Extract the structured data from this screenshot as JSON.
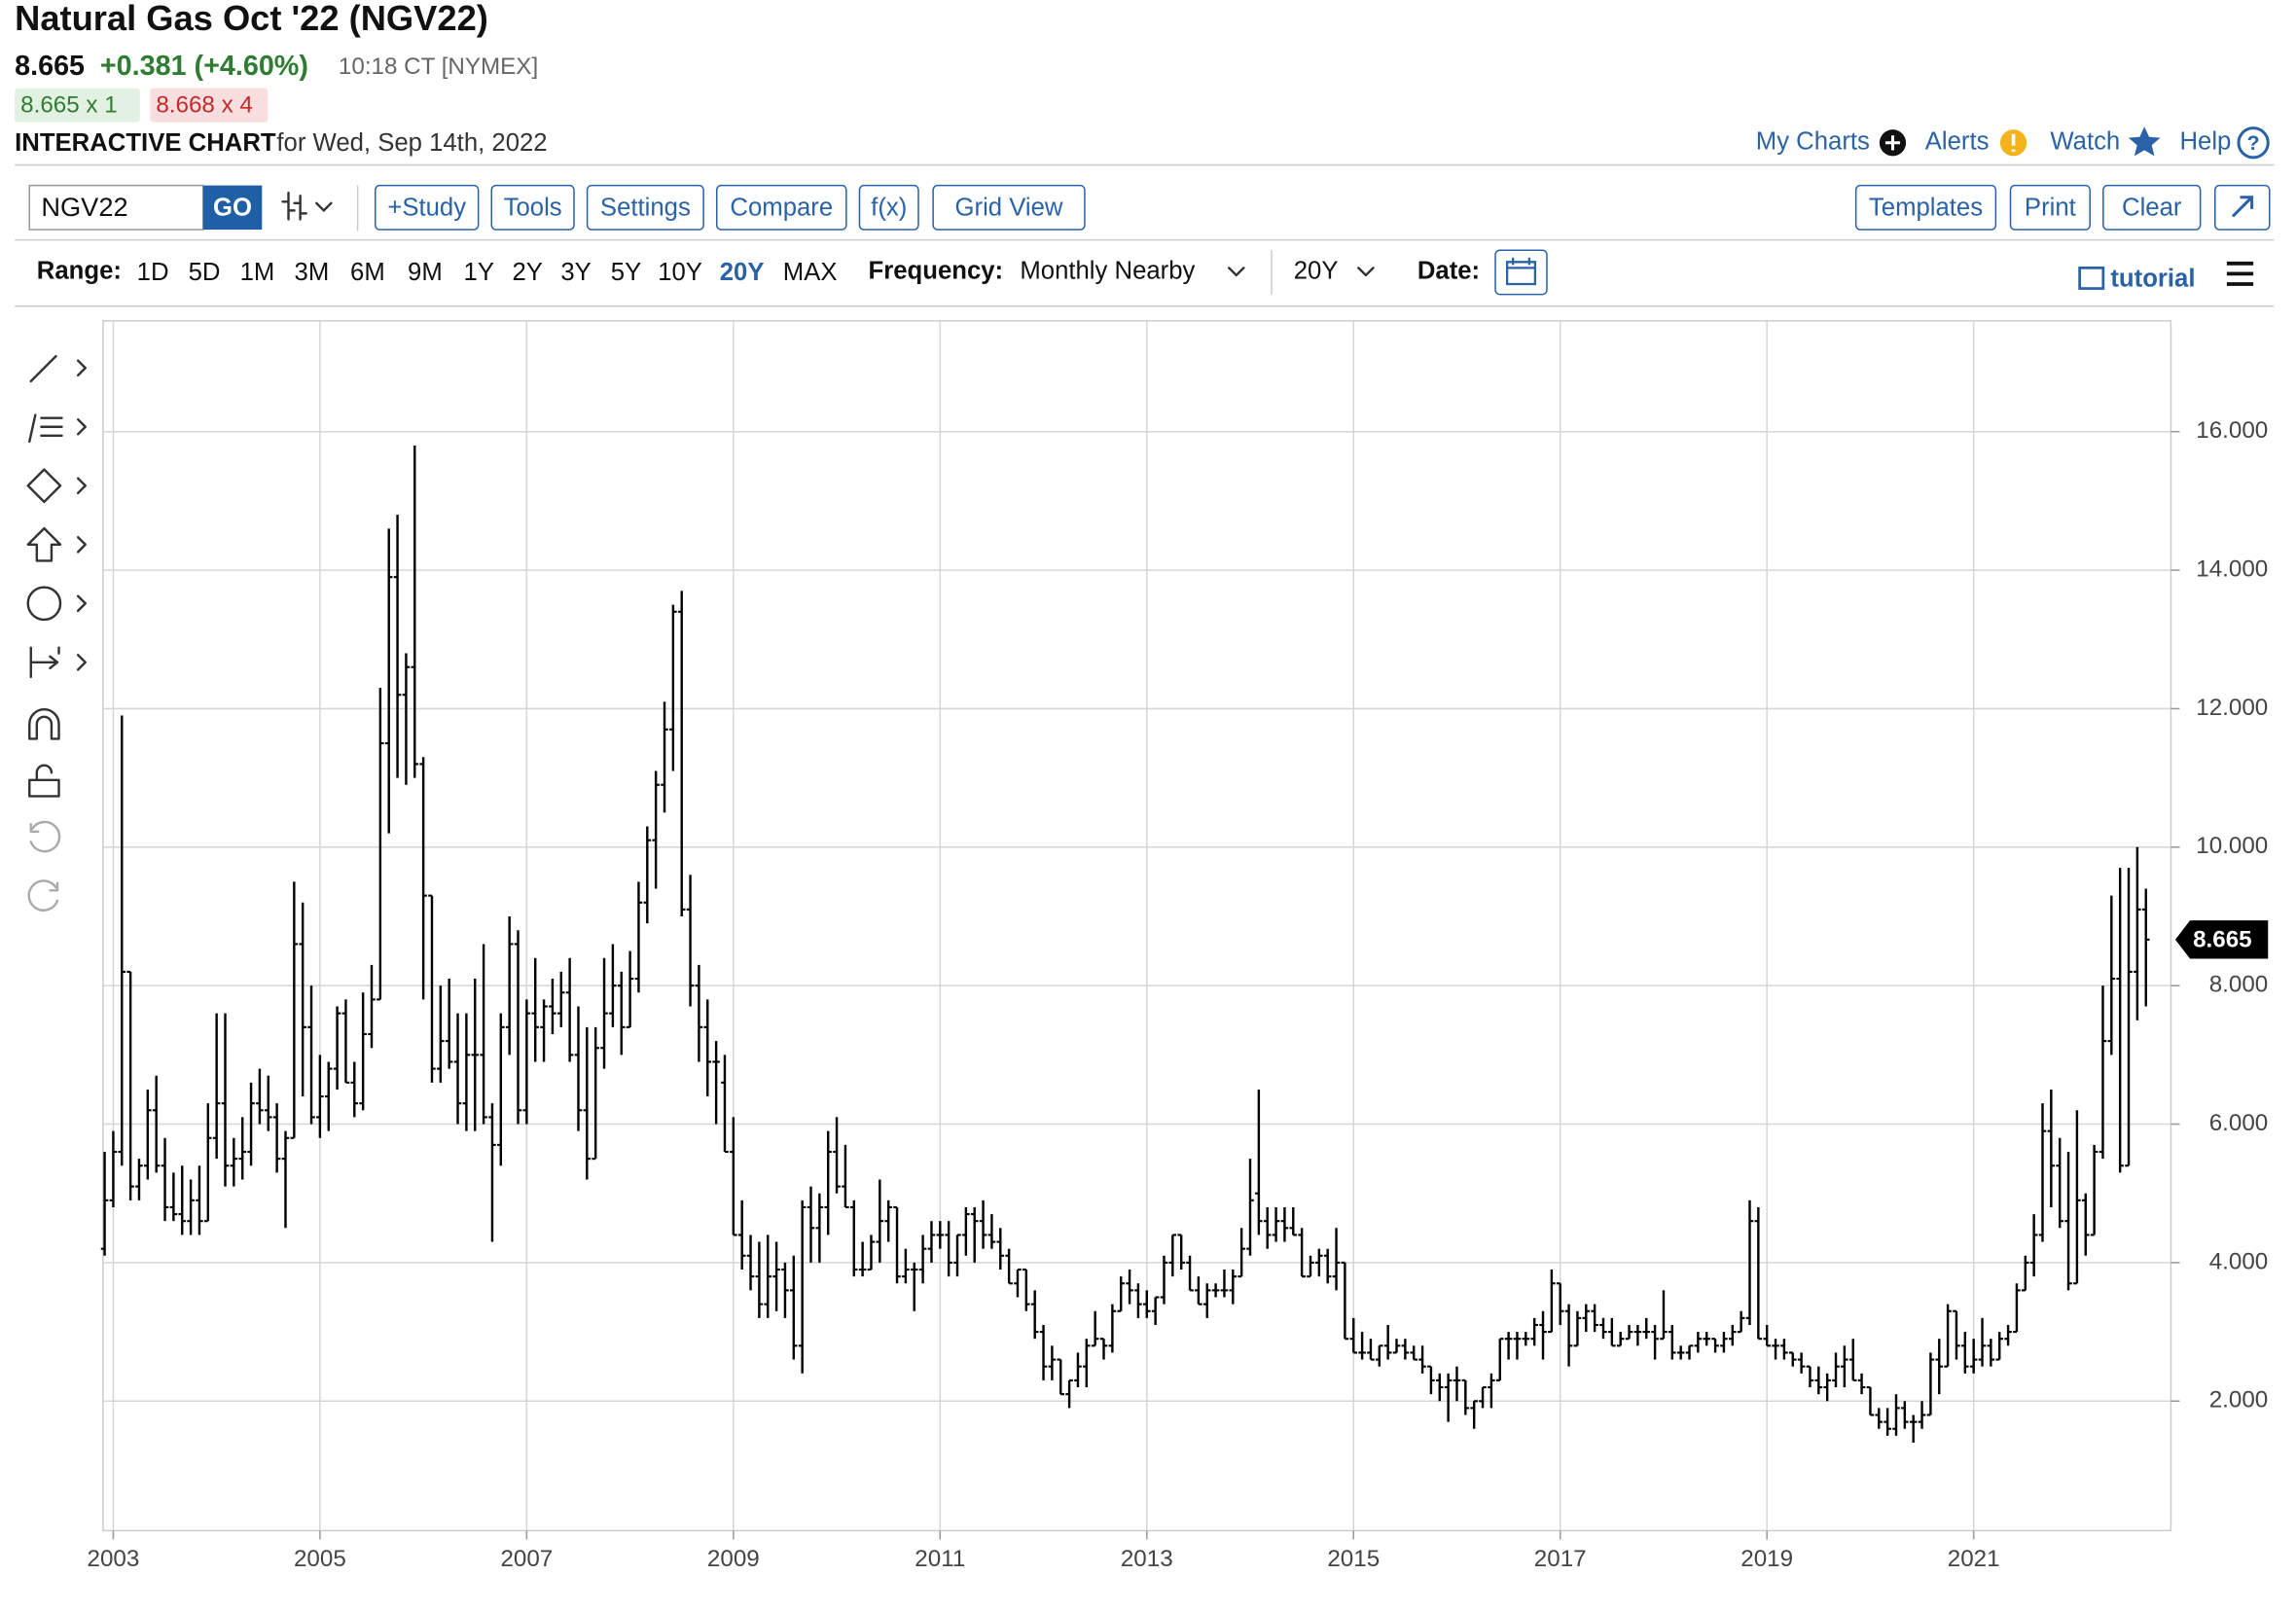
{
  "header": {
    "title": "Natural Gas Oct '22 (NGV22)",
    "last": "8.665",
    "change": "+0.381 (+4.60%)",
    "time": "10:18 CT [NYMEX]",
    "bid": "8.665 x 1",
    "ask": "8.668 x 4",
    "chart_label": "INTERACTIVE CHART",
    "date_text": "for Wed, Sep 14th, 2022"
  },
  "top_links": [
    "My Charts",
    "Alerts",
    "Watch",
    "Help"
  ],
  "toolbar": {
    "symbol": "NGV22",
    "go": "GO",
    "buttons": [
      "+Study",
      "Tools",
      "Settings",
      "Compare",
      "f(x)",
      "Grid View"
    ],
    "right_buttons": [
      "Templates",
      "Print",
      "Clear"
    ]
  },
  "range_bar": {
    "label": "Range:",
    "ranges": [
      "1D",
      "5D",
      "1M",
      "3M",
      "6M",
      "9M",
      "1Y",
      "2Y",
      "3Y",
      "5Y",
      "10Y",
      "20Y",
      "MAX"
    ],
    "active": "20Y",
    "frequency_label": "Frequency:",
    "frequency": "Monthly Nearby",
    "period": "20Y",
    "date_label": "Date:",
    "tutorial": "tutorial"
  },
  "chart_data": {
    "type": "ohlc",
    "color": "#000000",
    "grid": true,
    "categories": [
      null,
      "2003",
      null,
      null,
      null,
      null,
      null,
      null,
      null,
      null,
      null,
      null,
      null,
      null,
      null,
      null,
      null,
      null,
      null,
      null,
      null,
      null,
      null,
      null,
      null,
      "2005",
      null,
      null,
      null,
      null,
      null,
      null,
      null,
      null,
      null,
      null,
      null,
      null,
      null,
      null,
      null,
      null,
      null,
      null,
      null,
      null,
      null,
      null,
      null,
      "2007",
      null,
      null,
      null,
      null,
      null,
      null,
      null,
      null,
      null,
      null,
      null,
      null,
      null,
      null,
      null,
      null,
      null,
      null,
      null,
      null,
      null,
      null,
      null,
      "2009",
      null,
      null,
      null,
      null,
      null,
      null,
      null,
      null,
      null,
      null,
      null,
      null,
      null,
      null,
      null,
      null,
      null,
      null,
      null,
      null,
      null,
      null,
      null,
      "2011",
      null,
      null,
      null,
      null,
      null,
      null,
      null,
      null,
      null,
      null,
      null,
      null,
      null,
      null,
      null,
      null,
      null,
      null,
      null,
      null,
      null,
      null,
      null,
      "2013",
      null,
      null,
      null,
      null,
      null,
      null,
      null,
      null,
      null,
      null,
      null,
      null,
      null,
      null,
      null,
      null,
      null,
      null,
      null,
      null,
      null,
      null,
      null,
      "2015",
      null,
      null,
      null,
      null,
      null,
      null,
      null,
      null,
      null,
      null,
      null,
      null,
      null,
      null,
      null,
      null,
      null,
      null,
      null,
      null,
      null,
      null,
      null,
      "2017",
      null,
      null,
      null,
      null,
      null,
      null,
      null,
      null,
      null,
      null,
      null,
      null,
      null,
      null,
      null,
      null,
      null,
      null,
      null,
      null,
      null,
      null,
      null,
      "2019",
      null,
      null,
      null,
      null,
      null,
      null,
      null,
      null,
      null,
      null,
      null,
      null,
      null,
      null,
      null,
      null,
      null,
      null,
      null,
      null,
      null,
      null,
      null,
      "2021",
      null,
      null,
      null,
      null,
      null,
      null,
      null,
      null,
      null,
      null,
      null,
      null,
      null,
      null,
      null,
      null,
      null,
      null,
      null,
      null
    ],
    "open": [
      4.2,
      4.9,
      5.6,
      8.2,
      5.1,
      5.4,
      6.2,
      5.4,
      4.8,
      4.7,
      4.6,
      4.9,
      4.6,
      5.8,
      6.3,
      5.4,
      5.5,
      5.6,
      6.3,
      6.2,
      6.1,
      5.5,
      5.8,
      8.6,
      7.4,
      6.1,
      6.4,
      6.8,
      7.6,
      6.6,
      6.3,
      7.3,
      7.8,
      11.5,
      13.9,
      12.2,
      12.6,
      11.2,
      9.3,
      6.8,
      7.2,
      6.9,
      6.3,
      7.0,
      7.0,
      6.1,
      5.7,
      7.4,
      8.6,
      6.2,
      7.6,
      7.4,
      7.7,
      7.6,
      7.9,
      7.0,
      6.2,
      5.5,
      7.1,
      7.6,
      8.0,
      7.4,
      8.1,
      9.2,
      10.1,
      10.9,
      11.7,
      13.4,
      9.1,
      8.0,
      7.4,
      6.9,
      6.6,
      5.6,
      4.4,
      4.1,
      3.8,
      3.4,
      3.8,
      3.9,
      3.6,
      2.8,
      4.8,
      4.5,
      4.8,
      5.6,
      5.1,
      4.8,
      3.9,
      3.9,
      4.3,
      4.6,
      4.8,
      3.8,
      3.9,
      3.9,
      4.2,
      4.4,
      4.4,
      4.0,
      4.4,
      4.7,
      4.6,
      4.4,
      4.3,
      4.1,
      3.7,
      3.9,
      3.4,
      3.0,
      2.5,
      2.6,
      2.1,
      2.3,
      2.5,
      2.8,
      2.9,
      2.8,
      3.3,
      3.7,
      3.6,
      3.4,
      3.3,
      3.5,
      4.0,
      4.4,
      4.0,
      3.6,
      3.4,
      3.6,
      3.6,
      3.6,
      3.8,
      4.2,
      5.0,
      4.6,
      4.4,
      4.6,
      4.5,
      4.4,
      3.8,
      4.0,
      4.1,
      3.8,
      4.0,
      2.9,
      2.7,
      2.7,
      2.6,
      2.8,
      2.7,
      2.8,
      2.7,
      2.6,
      2.5,
      2.3,
      2.2,
      2.3,
      2.3,
      1.9,
      2.0,
      2.2,
      2.3,
      2.9,
      2.9,
      2.9,
      2.9,
      3.1,
      3.0,
      3.7,
      3.3,
      2.8,
      3.2,
      3.3,
      3.1,
      3.0,
      2.8,
      2.9,
      3.0,
      3.0,
      3.0,
      2.9,
      3.0,
      2.7,
      2.7,
      2.8,
      2.9,
      2.9,
      2.8,
      2.9,
      3.0,
      3.2,
      4.6,
      2.9,
      2.8,
      2.8,
      2.7,
      2.6,
      2.5,
      2.3,
      2.2,
      2.3,
      2.5,
      2.6,
      2.3,
      2.2,
      1.8,
      1.7,
      1.6,
      1.9,
      1.7,
      1.7,
      1.8,
      2.6,
      2.5,
      3.3,
      2.8,
      2.5,
      2.6,
      2.8,
      2.6,
      2.9,
      3.0,
      3.6,
      4.0,
      4.4,
      5.9,
      5.4,
      4.6,
      3.7,
      4.9,
      4.4,
      5.6,
      7.2,
      8.1,
      5.4,
      8.2,
      9.1
    ],
    "high": [
      5.6,
      5.9,
      11.9,
      8.2,
      5.5,
      6.5,
      6.7,
      5.8,
      5.3,
      5.4,
      5.2,
      5.4,
      6.3,
      7.6,
      7.6,
      5.8,
      6.1,
      6.6,
      6.8,
      6.7,
      6.3,
      5.9,
      9.5,
      9.2,
      8.0,
      7.0,
      6.9,
      7.7,
      7.8,
      6.9,
      7.9,
      8.3,
      12.3,
      14.6,
      14.8,
      12.8,
      15.8,
      11.3,
      9.3,
      8.0,
      8.1,
      7.6,
      7.6,
      8.1,
      8.6,
      6.3,
      7.6,
      9.0,
      8.8,
      7.8,
      8.4,
      7.8,
      8.1,
      8.2,
      8.4,
      7.7,
      7.4,
      7.4,
      8.4,
      8.6,
      8.2,
      8.5,
      9.5,
      10.3,
      11.1,
      12.1,
      13.5,
      13.7,
      9.6,
      8.3,
      7.8,
      7.2,
      7.0,
      6.1,
      4.9,
      4.4,
      4.3,
      4.4,
      4.3,
      4.0,
      4.1,
      4.9,
      5.1,
      5.0,
      5.9,
      6.1,
      5.7,
      4.9,
      4.3,
      4.4,
      5.2,
      4.9,
      4.8,
      4.2,
      4.0,
      4.4,
      4.6,
      4.6,
      4.6,
      4.4,
      4.8,
      4.8,
      4.9,
      4.7,
      4.5,
      4.2,
      3.9,
      3.9,
      3.6,
      3.1,
      2.8,
      2.6,
      2.3,
      2.7,
      2.9,
      3.3,
      2.9,
      3.4,
      3.8,
      3.9,
      3.7,
      3.6,
      3.5,
      4.1,
      4.4,
      4.4,
      4.1,
      3.8,
      3.7,
      3.7,
      3.9,
      3.9,
      4.5,
      5.5,
      6.5,
      4.8,
      4.8,
      4.8,
      4.8,
      4.5,
      4.1,
      4.2,
      4.2,
      4.5,
      4.0,
      3.2,
      3.0,
      2.9,
      2.8,
      3.1,
      2.9,
      2.9,
      2.8,
      2.8,
      2.5,
      2.4,
      2.4,
      2.5,
      2.3,
      2.0,
      2.2,
      2.4,
      2.9,
      3.0,
      3.0,
      3.0,
      3.2,
      3.3,
      3.9,
      3.7,
      3.4,
      3.3,
      3.4,
      3.4,
      3.2,
      3.2,
      3.0,
      3.1,
      3.1,
      3.2,
      3.1,
      3.6,
      3.1,
      2.8,
      2.8,
      3.0,
      3.0,
      2.9,
      3.0,
      3.1,
      3.3,
      4.9,
      4.8,
      3.1,
      2.9,
      2.9,
      2.7,
      2.7,
      2.5,
      2.5,
      2.4,
      2.7,
      2.8,
      2.9,
      2.4,
      2.2,
      1.9,
      1.9,
      2.1,
      2.0,
      1.8,
      2.0,
      2.7,
      2.9,
      3.4,
      3.3,
      3.0,
      2.9,
      3.2,
      2.9,
      3.0,
      3.1,
      3.7,
      4.1,
      4.7,
      6.3,
      6.5,
      5.8,
      5.6,
      6.2,
      5.0,
      5.7,
      8.0,
      9.3,
      9.7,
      9.7,
      10.0,
      9.4
    ],
    "low": [
      4.1,
      4.8,
      5.4,
      4.9,
      4.9,
      5.2,
      5.3,
      4.6,
      4.6,
      4.4,
      4.4,
      4.4,
      4.6,
      5.5,
      5.1,
      5.1,
      5.2,
      5.4,
      6.0,
      5.9,
      5.3,
      4.5,
      5.8,
      6.4,
      6.0,
      5.8,
      5.9,
      6.5,
      6.6,
      6.1,
      6.2,
      7.1,
      7.8,
      10.2,
      11.0,
      10.9,
      11.0,
      7.8,
      6.6,
      6.6,
      6.8,
      6.0,
      5.9,
      5.9,
      6.0,
      4.3,
      5.4,
      7.0,
      6.0,
      6.0,
      6.9,
      6.9,
      7.3,
      7.4,
      6.9,
      5.9,
      5.2,
      5.5,
      6.8,
      7.4,
      7.0,
      7.4,
      7.9,
      8.9,
      9.4,
      10.5,
      11.1,
      9.0,
      7.7,
      6.9,
      6.4,
      6.0,
      5.6,
      4.4,
      3.9,
      3.6,
      3.2,
      3.2,
      3.3,
      3.2,
      2.6,
      2.4,
      4.0,
      4.0,
      4.4,
      5.0,
      4.8,
      3.8,
      3.8,
      3.9,
      4.0,
      4.3,
      3.7,
      3.7,
      3.3,
      3.7,
      4.0,
      4.2,
      3.8,
      3.8,
      4.1,
      4.0,
      4.2,
      4.2,
      3.9,
      3.7,
      3.5,
      3.3,
      2.9,
      2.3,
      2.3,
      2.1,
      1.9,
      2.2,
      2.2,
      2.8,
      2.6,
      2.7,
      3.3,
      3.4,
      3.2,
      3.2,
      3.1,
      3.4,
      3.8,
      3.9,
      3.6,
      3.4,
      3.2,
      3.5,
      3.5,
      3.4,
      3.8,
      4.1,
      4.4,
      4.2,
      4.3,
      4.3,
      4.4,
      3.8,
      3.8,
      3.8,
      3.7,
      3.6,
      2.9,
      2.7,
      2.6,
      2.6,
      2.5,
      2.6,
      2.7,
      2.6,
      2.6,
      2.4,
      2.1,
      2.0,
      1.7,
      2.0,
      1.8,
      1.6,
      1.9,
      1.9,
      2.3,
      2.6,
      2.6,
      2.8,
      2.8,
      2.6,
      3.0,
      3.1,
      2.5,
      2.8,
      3.0,
      3.0,
      2.9,
      2.8,
      2.8,
      2.9,
      2.8,
      2.9,
      2.6,
      2.9,
      2.6,
      2.6,
      2.6,
      2.7,
      2.8,
      2.7,
      2.7,
      2.8,
      3.0,
      3.1,
      2.9,
      2.8,
      2.6,
      2.6,
      2.5,
      2.4,
      2.2,
      2.1,
      2.0,
      2.2,
      2.2,
      2.3,
      2.1,
      1.8,
      1.6,
      1.5,
      1.5,
      1.6,
      1.4,
      1.6,
      1.8,
      2.1,
      2.5,
      2.6,
      2.4,
      2.4,
      2.5,
      2.5,
      2.6,
      2.8,
      3.0,
      3.6,
      3.8,
      4.3,
      4.8,
      4.5,
      3.6,
      3.7,
      4.1,
      4.4,
      5.5,
      7.0,
      5.3,
      5.4,
      7.5,
      7.7
    ],
    "close": [
      4.9,
      5.6,
      8.2,
      5.1,
      5.4,
      6.2,
      5.4,
      4.8,
      4.7,
      4.6,
      4.9,
      4.6,
      5.8,
      6.3,
      5.4,
      5.5,
      5.6,
      6.3,
      6.2,
      6.1,
      5.5,
      5.8,
      8.6,
      7.4,
      6.1,
      6.4,
      6.8,
      7.6,
      6.6,
      6.3,
      7.3,
      7.8,
      11.5,
      13.9,
      12.2,
      12.6,
      11.2,
      9.3,
      6.8,
      7.2,
      6.9,
      6.3,
      7.0,
      7.0,
      6.1,
      5.7,
      7.4,
      8.6,
      6.2,
      7.6,
      7.4,
      7.7,
      7.6,
      7.9,
      7.0,
      6.2,
      5.5,
      7.1,
      7.6,
      8.0,
      7.4,
      8.1,
      9.2,
      10.1,
      10.9,
      11.7,
      13.4,
      9.1,
      8.0,
      7.4,
      6.9,
      6.9,
      5.6,
      4.4,
      4.1,
      3.8,
      3.4,
      3.8,
      3.9,
      3.6,
      2.8,
      4.8,
      4.5,
      4.8,
      5.6,
      5.1,
      4.8,
      3.9,
      3.9,
      4.3,
      4.6,
      4.8,
      3.8,
      3.9,
      3.9,
      4.2,
      4.4,
      4.4,
      4.0,
      4.4,
      4.7,
      4.6,
      4.4,
      4.3,
      4.1,
      3.7,
      3.9,
      3.4,
      3.0,
      2.5,
      2.6,
      2.1,
      2.3,
      2.5,
      2.8,
      2.9,
      2.8,
      3.3,
      3.7,
      3.6,
      3.4,
      3.3,
      3.5,
      4.0,
      4.4,
      4.0,
      3.6,
      3.4,
      3.6,
      3.6,
      3.6,
      3.8,
      4.2,
      4.9,
      4.6,
      4.4,
      4.6,
      4.5,
      4.4,
      3.8,
      4.0,
      4.1,
      3.8,
      4.0,
      2.9,
      2.7,
      2.7,
      2.6,
      2.8,
      2.7,
      2.8,
      2.7,
      2.6,
      2.5,
      2.3,
      2.2,
      2.3,
      2.3,
      1.9,
      2.0,
      2.2,
      2.3,
      2.9,
      2.9,
      2.9,
      2.9,
      3.1,
      3.0,
      3.7,
      3.3,
      2.8,
      3.2,
      3.3,
      3.1,
      3.0,
      2.8,
      2.9,
      3.0,
      3.0,
      3.0,
      2.9,
      3.0,
      2.7,
      2.7,
      2.8,
      2.9,
      2.9,
      2.8,
      2.9,
      3.0,
      3.2,
      4.6,
      2.9,
      2.8,
      2.8,
      2.7,
      2.6,
      2.5,
      2.3,
      2.2,
      2.3,
      2.5,
      2.6,
      2.3,
      2.2,
      1.8,
      1.7,
      1.6,
      1.9,
      1.7,
      1.7,
      1.8,
      2.6,
      2.5,
      3.3,
      2.8,
      2.5,
      2.6,
      2.8,
      2.6,
      2.9,
      3.0,
      3.6,
      4.0,
      4.4,
      5.9,
      5.4,
      4.6,
      3.7,
      4.9,
      4.4,
      5.6,
      7.2,
      8.1,
      5.4,
      8.2,
      9.1,
      8.665
    ],
    "ylim": [
      0.13,
      17.6
    ],
    "yticks": [
      {
        "value": 2,
        "label": "2.000"
      },
      {
        "value": 4,
        "label": "4.000"
      },
      {
        "value": 6,
        "label": "6.000"
      },
      {
        "value": 8,
        "label": "8.000"
      },
      {
        "value": 10,
        "label": "10.000"
      },
      {
        "value": 12,
        "label": "12.000"
      },
      {
        "value": 14,
        "label": "14.000"
      },
      {
        "value": 16,
        "label": "16.000"
      }
    ]
  }
}
